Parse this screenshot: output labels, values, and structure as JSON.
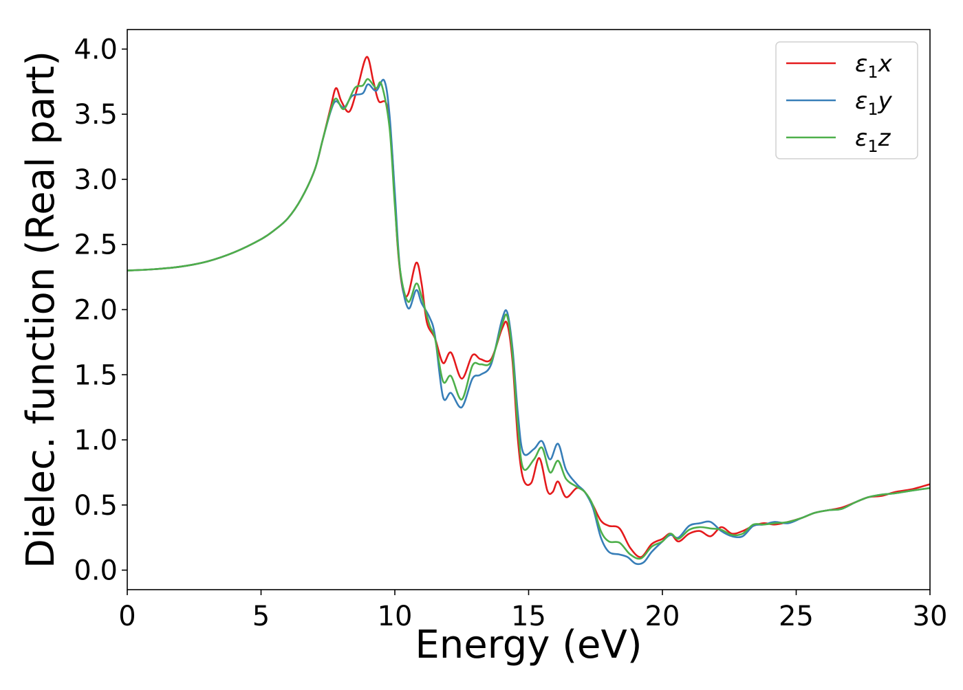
{
  "chart_data": {
    "type": "line",
    "title": "",
    "xlabel": "Energy (eV)",
    "ylabel": "Dielec. function (Real part)",
    "xlim": [
      0,
      30
    ],
    "ylim": [
      -0.15,
      4.15
    ],
    "xticks": [
      0,
      5,
      10,
      15,
      20,
      25,
      30
    ],
    "xtick_labels": [
      "0",
      "5",
      "10",
      "15",
      "20",
      "25",
      "30"
    ],
    "yticks": [
      0.0,
      0.5,
      1.0,
      1.5,
      2.0,
      2.5,
      3.0,
      3.5,
      4.0
    ],
    "ytick_labels": [
      "0.0",
      "0.5",
      "1.0",
      "1.5",
      "2.0",
      "2.5",
      "3.0",
      "3.5",
      "4.0"
    ],
    "grid": false,
    "legend_position": "top-right",
    "series": [
      {
        "name": "ε1x",
        "label_main": "ε",
        "label_sub": "1",
        "label_var": "x",
        "color": "#e41a1c",
        "points": [
          [
            0,
            2.3
          ],
          [
            1,
            2.31
          ],
          [
            2,
            2.33
          ],
          [
            3,
            2.37
          ],
          [
            4,
            2.44
          ],
          [
            5,
            2.54
          ],
          [
            5.5,
            2.61
          ],
          [
            6,
            2.7
          ],
          [
            6.5,
            2.85
          ],
          [
            7,
            3.07
          ],
          [
            7.3,
            3.3
          ],
          [
            7.6,
            3.55
          ],
          [
            7.8,
            3.7
          ],
          [
            8.0,
            3.6
          ],
          [
            8.3,
            3.52
          ],
          [
            8.6,
            3.7
          ],
          [
            8.95,
            3.94
          ],
          [
            9.2,
            3.75
          ],
          [
            9.4,
            3.6
          ],
          [
            9.7,
            3.57
          ],
          [
            9.9,
            3.2
          ],
          [
            10.1,
            2.5
          ],
          [
            10.3,
            2.15
          ],
          [
            10.5,
            2.12
          ],
          [
            10.8,
            2.36
          ],
          [
            11.0,
            2.2
          ],
          [
            11.2,
            1.9
          ],
          [
            11.5,
            1.78
          ],
          [
            11.8,
            1.59
          ],
          [
            12.1,
            1.67
          ],
          [
            12.5,
            1.47
          ],
          [
            12.9,
            1.65
          ],
          [
            13.2,
            1.62
          ],
          [
            13.6,
            1.62
          ],
          [
            14.0,
            1.85
          ],
          [
            14.2,
            1.89
          ],
          [
            14.4,
            1.6
          ],
          [
            14.6,
            1.0
          ],
          [
            14.8,
            0.7
          ],
          [
            15.1,
            0.67
          ],
          [
            15.4,
            0.86
          ],
          [
            15.7,
            0.61
          ],
          [
            15.9,
            0.6
          ],
          [
            16.1,
            0.68
          ],
          [
            16.4,
            0.56
          ],
          [
            16.8,
            0.63
          ],
          [
            17.1,
            0.6
          ],
          [
            17.4,
            0.5
          ],
          [
            17.7,
            0.38
          ],
          [
            18.0,
            0.34
          ],
          [
            18.4,
            0.32
          ],
          [
            18.8,
            0.17
          ],
          [
            19.2,
            0.1
          ],
          [
            19.6,
            0.2
          ],
          [
            20.0,
            0.24
          ],
          [
            20.3,
            0.28
          ],
          [
            20.6,
            0.22
          ],
          [
            21.0,
            0.28
          ],
          [
            21.4,
            0.3
          ],
          [
            21.8,
            0.26
          ],
          [
            22.2,
            0.33
          ],
          [
            22.6,
            0.28
          ],
          [
            23.0,
            0.3
          ],
          [
            23.4,
            0.34
          ],
          [
            23.8,
            0.36
          ],
          [
            24.2,
            0.35
          ],
          [
            24.7,
            0.37
          ],
          [
            25.2,
            0.4
          ],
          [
            25.7,
            0.44
          ],
          [
            26.2,
            0.46
          ],
          [
            26.7,
            0.48
          ],
          [
            27.2,
            0.52
          ],
          [
            27.7,
            0.56
          ],
          [
            28.2,
            0.57
          ],
          [
            28.7,
            0.6
          ],
          [
            29.3,
            0.62
          ],
          [
            30,
            0.66
          ]
        ]
      },
      {
        "name": "ε1y",
        "label_main": "ε",
        "label_sub": "1",
        "label_var": "y",
        "color": "#377eb8",
        "points": [
          [
            0,
            2.3
          ],
          [
            1,
            2.31
          ],
          [
            2,
            2.33
          ],
          [
            3,
            2.37
          ],
          [
            4,
            2.44
          ],
          [
            5,
            2.54
          ],
          [
            5.5,
            2.61
          ],
          [
            6,
            2.7
          ],
          [
            6.5,
            2.85
          ],
          [
            7,
            3.07
          ],
          [
            7.3,
            3.3
          ],
          [
            7.6,
            3.52
          ],
          [
            7.8,
            3.6
          ],
          [
            8.1,
            3.55
          ],
          [
            8.4,
            3.64
          ],
          [
            8.8,
            3.66
          ],
          [
            9.0,
            3.73
          ],
          [
            9.3,
            3.68
          ],
          [
            9.6,
            3.76
          ],
          [
            9.8,
            3.5
          ],
          [
            10.0,
            2.9
          ],
          [
            10.2,
            2.3
          ],
          [
            10.5,
            2.01
          ],
          [
            10.8,
            2.15
          ],
          [
            11.0,
            2.05
          ],
          [
            11.3,
            1.94
          ],
          [
            11.5,
            1.8
          ],
          [
            11.8,
            1.33
          ],
          [
            12.1,
            1.36
          ],
          [
            12.5,
            1.25
          ],
          [
            12.9,
            1.47
          ],
          [
            13.2,
            1.5
          ],
          [
            13.6,
            1.58
          ],
          [
            14.0,
            1.92
          ],
          [
            14.2,
            1.98
          ],
          [
            14.4,
            1.7
          ],
          [
            14.6,
            1.2
          ],
          [
            14.8,
            0.9
          ],
          [
            15.2,
            0.93
          ],
          [
            15.5,
            0.99
          ],
          [
            15.8,
            0.85
          ],
          [
            16.1,
            0.97
          ],
          [
            16.4,
            0.77
          ],
          [
            16.8,
            0.66
          ],
          [
            17.1,
            0.6
          ],
          [
            17.4,
            0.48
          ],
          [
            17.7,
            0.25
          ],
          [
            18.0,
            0.14
          ],
          [
            18.4,
            0.12
          ],
          [
            18.7,
            0.1
          ],
          [
            19.0,
            0.05
          ],
          [
            19.3,
            0.06
          ],
          [
            19.6,
            0.14
          ],
          [
            20.0,
            0.22
          ],
          [
            20.3,
            0.27
          ],
          [
            20.6,
            0.25
          ],
          [
            21.0,
            0.34
          ],
          [
            21.4,
            0.36
          ],
          [
            21.8,
            0.37
          ],
          [
            22.2,
            0.3
          ],
          [
            22.6,
            0.26
          ],
          [
            23.0,
            0.26
          ],
          [
            23.4,
            0.34
          ],
          [
            23.8,
            0.35
          ],
          [
            24.2,
            0.37
          ],
          [
            24.7,
            0.36
          ],
          [
            25.2,
            0.4
          ],
          [
            25.7,
            0.44
          ],
          [
            26.2,
            0.46
          ],
          [
            26.7,
            0.47
          ],
          [
            27.2,
            0.52
          ],
          [
            27.7,
            0.56
          ],
          [
            28.2,
            0.58
          ],
          [
            28.7,
            0.59
          ],
          [
            29.3,
            0.61
          ],
          [
            30,
            0.63
          ]
        ]
      },
      {
        "name": "ε1z",
        "label_main": "ε",
        "label_sub": "1",
        "label_var": "z",
        "color": "#4daf4a",
        "points": [
          [
            0,
            2.3
          ],
          [
            1,
            2.31
          ],
          [
            2,
            2.33
          ],
          [
            3,
            2.37
          ],
          [
            4,
            2.44
          ],
          [
            5,
            2.54
          ],
          [
            5.5,
            2.61
          ],
          [
            6,
            2.7
          ],
          [
            6.5,
            2.85
          ],
          [
            7,
            3.07
          ],
          [
            7.3,
            3.3
          ],
          [
            7.6,
            3.53
          ],
          [
            7.8,
            3.62
          ],
          [
            8.1,
            3.54
          ],
          [
            8.5,
            3.7
          ],
          [
            8.8,
            3.72
          ],
          [
            9.0,
            3.77
          ],
          [
            9.3,
            3.7
          ],
          [
            9.5,
            3.73
          ],
          [
            9.8,
            3.4
          ],
          [
            10.0,
            2.8
          ],
          [
            10.2,
            2.3
          ],
          [
            10.5,
            2.06
          ],
          [
            10.8,
            2.2
          ],
          [
            11.0,
            2.1
          ],
          [
            11.3,
            1.88
          ],
          [
            11.5,
            1.78
          ],
          [
            11.8,
            1.45
          ],
          [
            12.1,
            1.49
          ],
          [
            12.5,
            1.31
          ],
          [
            12.9,
            1.57
          ],
          [
            13.2,
            1.58
          ],
          [
            13.6,
            1.6
          ],
          [
            14.0,
            1.88
          ],
          [
            14.2,
            1.95
          ],
          [
            14.4,
            1.65
          ],
          [
            14.6,
            1.1
          ],
          [
            14.8,
            0.78
          ],
          [
            15.2,
            0.85
          ],
          [
            15.5,
            0.94
          ],
          [
            15.8,
            0.75
          ],
          [
            16.1,
            0.84
          ],
          [
            16.4,
            0.7
          ],
          [
            16.8,
            0.64
          ],
          [
            17.1,
            0.6
          ],
          [
            17.4,
            0.5
          ],
          [
            17.7,
            0.3
          ],
          [
            18.0,
            0.22
          ],
          [
            18.4,
            0.21
          ],
          [
            18.8,
            0.12
          ],
          [
            19.2,
            0.09
          ],
          [
            19.6,
            0.18
          ],
          [
            20.0,
            0.22
          ],
          [
            20.3,
            0.28
          ],
          [
            20.6,
            0.24
          ],
          [
            21.0,
            0.31
          ],
          [
            21.4,
            0.33
          ],
          [
            21.8,
            0.32
          ],
          [
            22.2,
            0.31
          ],
          [
            22.6,
            0.27
          ],
          [
            23.0,
            0.28
          ],
          [
            23.4,
            0.35
          ],
          [
            23.8,
            0.35
          ],
          [
            24.2,
            0.36
          ],
          [
            24.7,
            0.37
          ],
          [
            25.2,
            0.4
          ],
          [
            25.7,
            0.44
          ],
          [
            26.2,
            0.46
          ],
          [
            26.7,
            0.47
          ],
          [
            27.2,
            0.52
          ],
          [
            27.7,
            0.56
          ],
          [
            28.2,
            0.58
          ],
          [
            28.7,
            0.59
          ],
          [
            29.3,
            0.61
          ],
          [
            30,
            0.63
          ]
        ]
      }
    ]
  }
}
